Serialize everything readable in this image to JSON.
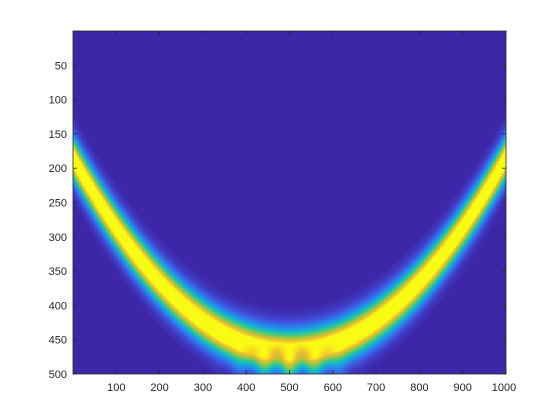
{
  "chart_data": {
    "type": "heatmap",
    "title": "",
    "xlabel": "",
    "ylabel": "",
    "xlim": [
      0,
      1000
    ],
    "ylim": [
      0,
      500
    ],
    "y_direction": "reverse",
    "colormap": "parula",
    "background_color": "#3e26a8",
    "x_ticks": [
      100,
      200,
      300,
      400,
      500,
      600,
      700,
      800,
      900,
      1000
    ],
    "y_ticks": [
      50,
      100,
      150,
      200,
      250,
      300,
      350,
      400,
      450,
      500
    ],
    "ridge": {
      "shape": "parabola",
      "vertex_x": 500,
      "vertex_y": 468,
      "edge_y_at_x0": 185,
      "edge_y_at_x1000": 185,
      "peak_value": 1.0,
      "interference_fringes_near_y": 485
    },
    "grid": false,
    "legend": "none"
  }
}
